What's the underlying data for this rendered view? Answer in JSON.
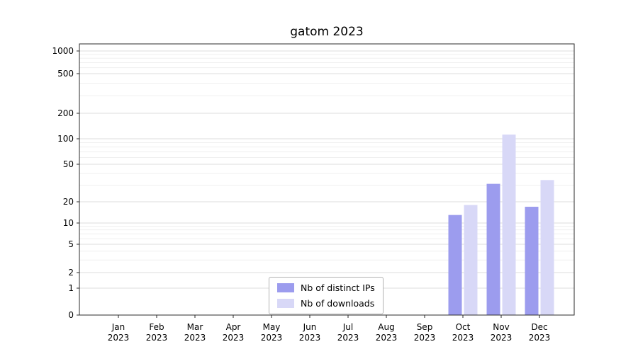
{
  "title": "gatom 2023",
  "chart_data": {
    "type": "bar",
    "title": "gatom 2023",
    "categories": [
      "Jan",
      "Feb",
      "Mar",
      "Apr",
      "May",
      "Jun",
      "Jul",
      "Aug",
      "Sep",
      "Oct",
      "Nov",
      "Dec"
    ],
    "x_sub_label": "2023",
    "series": [
      {
        "name": "Nb of distinct IPs",
        "color": "#9c9cee",
        "values": [
          0,
          0,
          0,
          0,
          0,
          0,
          0,
          0,
          0,
          13,
          31,
          17
        ]
      },
      {
        "name": "Nb of downloads",
        "color": "#d8d8f7",
        "values": [
          0,
          0,
          0,
          0,
          0,
          0,
          0,
          0,
          0,
          18,
          112,
          34
        ]
      }
    ],
    "yscale": "symlog",
    "yticks": [
      0,
      1,
      2,
      5,
      10,
      20,
      50,
      100,
      200,
      500,
      1000
    ],
    "ylim": [
      0,
      1000
    ],
    "grid": "horizontal-major-minor",
    "legend_position": "lower center"
  },
  "colors": {
    "grid_major": "#dcdcdc",
    "grid_minor": "#efefef",
    "axis": "#2b2b2b",
    "background": "#ffffff"
  }
}
